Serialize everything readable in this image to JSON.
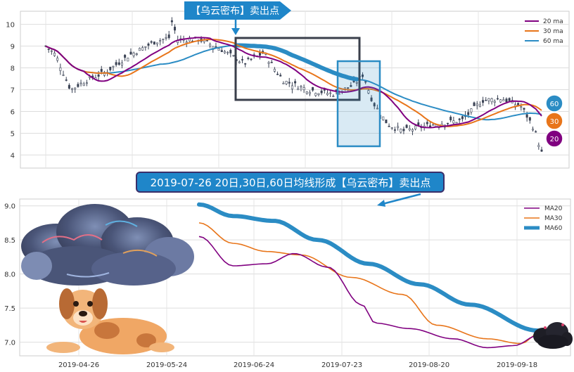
{
  "chart_data": [
    {
      "type": "line",
      "xlabel": "",
      "ylabel": "",
      "ylim": [
        3.4,
        10.6
      ],
      "yticks": [
        4,
        5,
        6,
        7,
        8,
        9,
        10
      ],
      "grid": true,
      "legend_position": "top-right",
      "series": [
        {
          "name": "20 ma",
          "color": "#800080"
        },
        {
          "name": "30 ma",
          "color": "#e8751a"
        },
        {
          "name": "60 ma",
          "color": "#2b8cc4"
        }
      ],
      "end_badges": [
        {
          "label": "60",
          "color": "#2b8cc4"
        },
        {
          "label": "30",
          "color": "#e8751a"
        },
        {
          "label": "20",
          "color": "#800080"
        }
      ],
      "annotation": "【乌云密布】卖出点"
    },
    {
      "type": "line",
      "xlabel": "",
      "ylabel": "",
      "ylim": [
        6.8,
        9.1
      ],
      "yticks": [
        "7.0",
        "7.5",
        "8.0",
        "8.5",
        "9.0"
      ],
      "x_ticks": [
        "2019-04-26",
        "2019-05-24",
        "2019-06-24",
        "2019-07-23",
        "2019-08-20",
        "2019-09-18"
      ],
      "grid": true,
      "legend_position": "top-right",
      "annotation": "2019-07-26 20日,30日,60日均线形成【乌云密布】卖出点",
      "series": [
        {
          "name": "MA20",
          "color": "#800080"
        },
        {
          "name": "MA30",
          "color": "#e8751a"
        },
        {
          "name": "MA60",
          "color": "#2b8cc4"
        }
      ]
    }
  ]
}
